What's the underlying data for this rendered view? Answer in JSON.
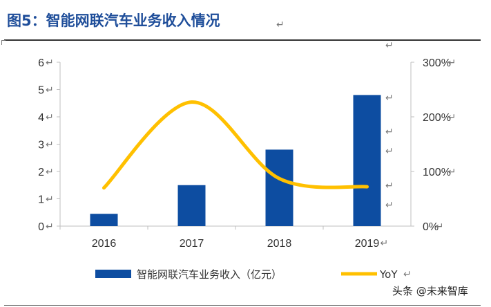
{
  "figure_title": "图5：智能网联汽车业务收入情况",
  "watermark": "头条 @未来智库",
  "colors": {
    "bar": "#0d4da1",
    "line": "#ffc000",
    "title": "#1f4e9a",
    "axis": "#bfbfbf",
    "text": "#333333"
  },
  "chart_data": {
    "type": "bar",
    "categories": [
      "2016",
      "2017",
      "2018",
      "2019"
    ],
    "series": [
      {
        "name": "智能网联汽车业务收入（亿元）",
        "type": "bar",
        "axis": "left",
        "values": [
          0.45,
          1.5,
          2.8,
          4.8
        ]
      },
      {
        "name": "YoY",
        "type": "line",
        "axis": "right",
        "smooth": true,
        "values": [
          70,
          227,
          87,
          72
        ]
      }
    ],
    "y_left": {
      "ylim": [
        0,
        6
      ],
      "ticks": [
        "0",
        "1",
        "2",
        "3",
        "4",
        "5",
        "6"
      ]
    },
    "y_right": {
      "ylim": [
        0,
        300
      ],
      "ticks": [
        "0%",
        "100%",
        "200%",
        "300%"
      ]
    },
    "grid": false,
    "legend": {
      "position": "bottom"
    }
  }
}
